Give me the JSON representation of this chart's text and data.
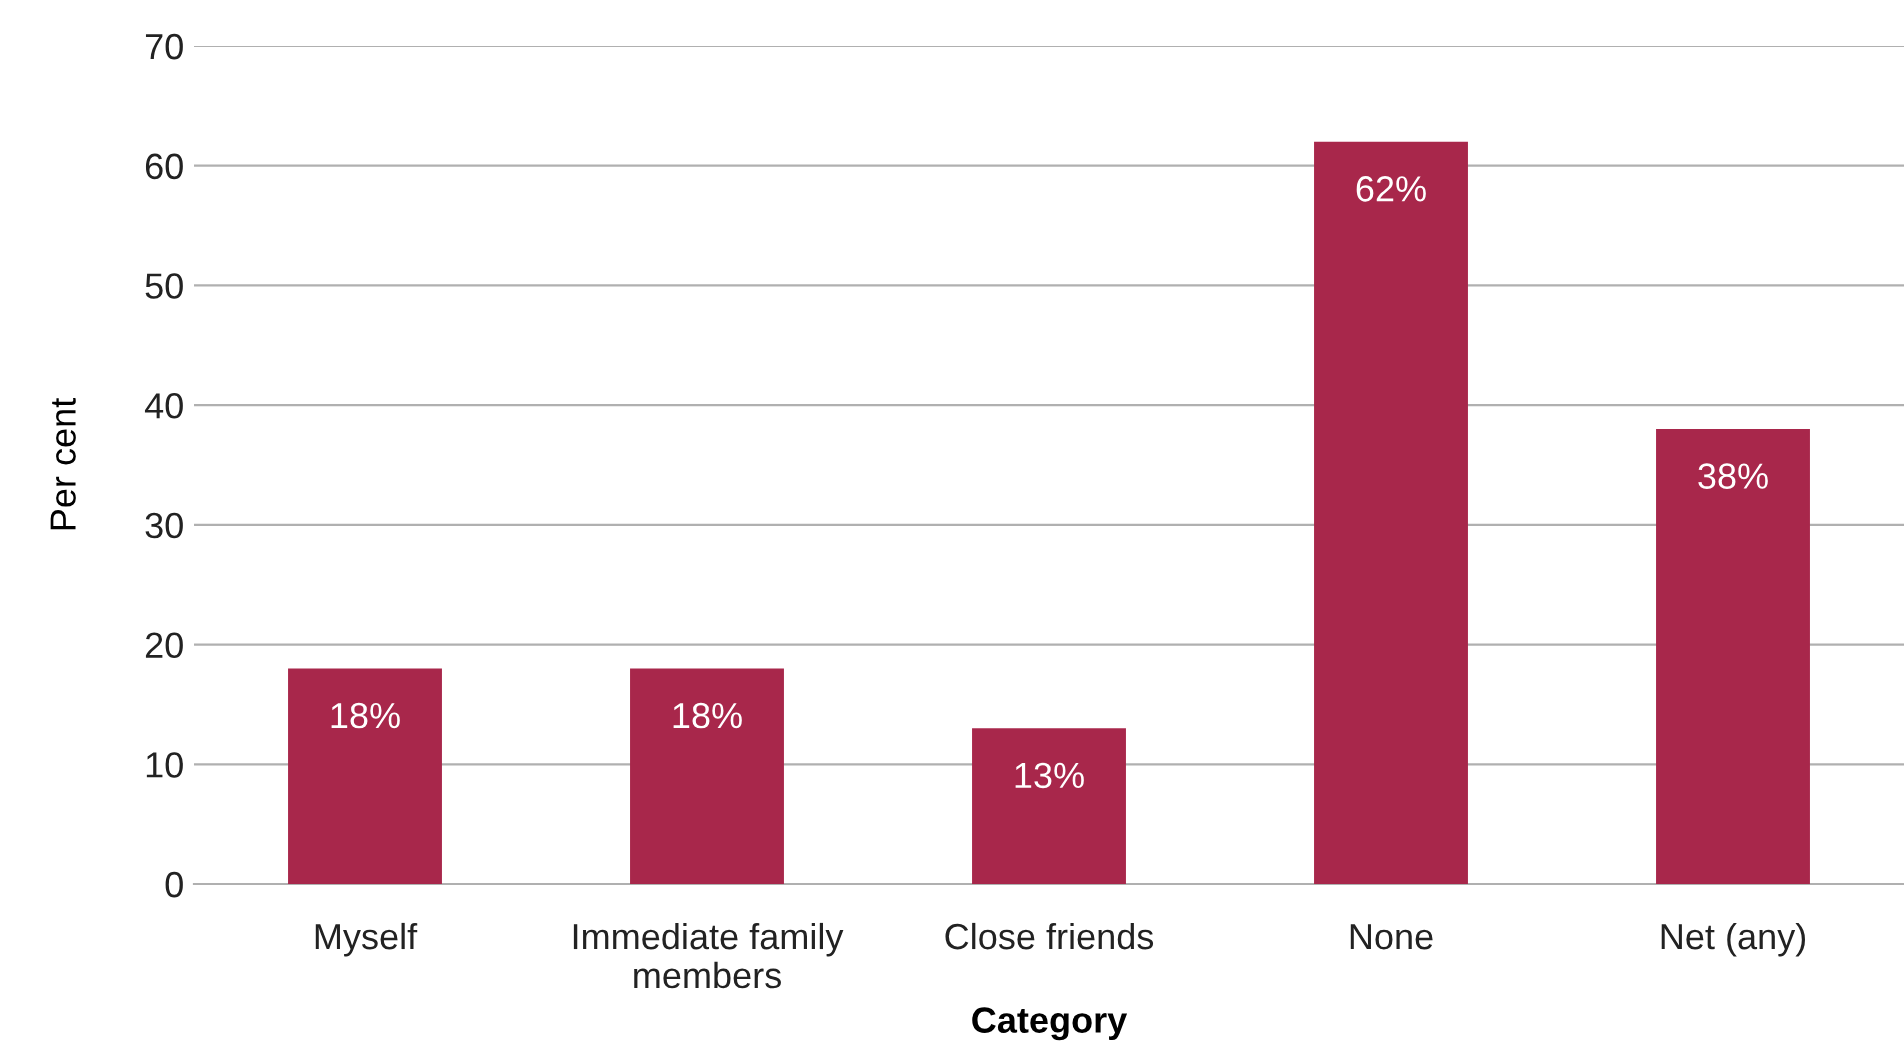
{
  "chart_data": {
    "type": "bar",
    "categories": [
      "Myself",
      "Immediate family members",
      "Close friends",
      "None",
      "Net (any)"
    ],
    "values": [
      18,
      18,
      13,
      62,
      38
    ],
    "value_labels": [
      "18%",
      "18%",
      "13%",
      "62%",
      "38%"
    ],
    "color": "#a8274b",
    "xlabel": "Category",
    "ylabel": "Per cent",
    "ylim": [
      0,
      70
    ],
    "yticks": [
      0,
      10,
      20,
      30,
      40,
      50,
      60,
      70
    ],
    "grid": "y"
  }
}
